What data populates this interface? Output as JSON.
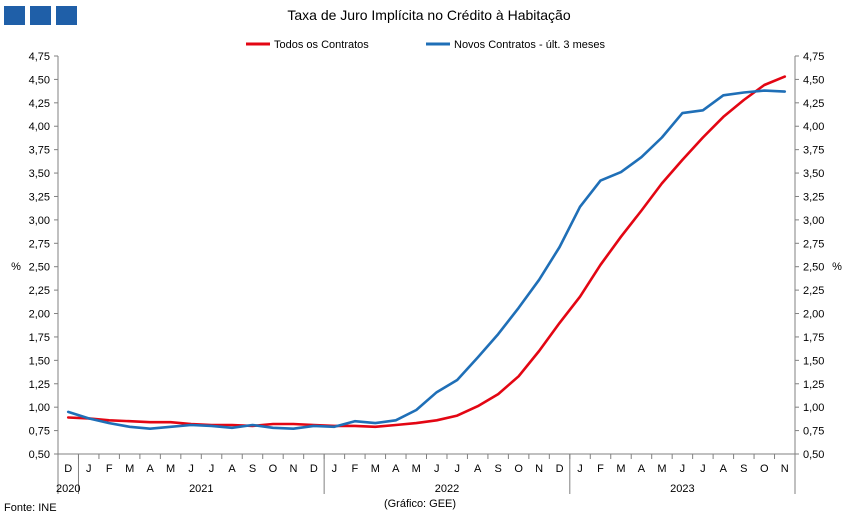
{
  "brand": {
    "color": "#1f5fa8"
  },
  "footer": {
    "source": "Fonte: INE",
    "credit": "(Gráfico: GEE)"
  },
  "chart_data": {
    "type": "line",
    "title": "Taxa de Juro Implícita  no Crédito à Habitação",
    "ylabel": "%",
    "ylabel_right": "%",
    "ylim": [
      0.5,
      4.75
    ],
    "yticks": [
      "0,50",
      "0,75",
      "1,00",
      "1,25",
      "1,50",
      "1,75",
      "2,00",
      "2,25",
      "2,50",
      "2,75",
      "3,00",
      "3,25",
      "3,50",
      "3,75",
      "4,00",
      "4,25",
      "4,50",
      "4,75"
    ],
    "grid": false,
    "legend_position": "top",
    "categories": [
      "D",
      "J",
      "F",
      "M",
      "A",
      "M",
      "J",
      "J",
      "A",
      "S",
      "O",
      "N",
      "D",
      "J",
      "F",
      "M",
      "A",
      "M",
      "J",
      "J",
      "A",
      "S",
      "O",
      "N",
      "D",
      "J",
      "F",
      "M",
      "A",
      "M",
      "J",
      "J",
      "A",
      "S",
      "O",
      "N"
    ],
    "year_labels": [
      "2020",
      "2021",
      "2022",
      "2023"
    ],
    "series": [
      {
        "name": "Todos os Contratos",
        "color": "#e30613",
        "values": [
          0.89,
          0.88,
          0.86,
          0.85,
          0.84,
          0.84,
          0.82,
          0.81,
          0.81,
          0.8,
          0.82,
          0.82,
          0.81,
          0.8,
          0.8,
          0.79,
          0.81,
          0.83,
          0.86,
          0.91,
          1.01,
          1.14,
          1.33,
          1.6,
          1.9,
          2.18,
          2.52,
          2.82,
          3.1,
          3.39,
          3.64,
          3.88,
          4.1,
          4.28,
          4.44,
          4.53
        ]
      },
      {
        "name": "Novos Contratos - últ. 3 meses",
        "color": "#1f6fb7",
        "values": [
          0.95,
          0.88,
          0.83,
          0.79,
          0.77,
          0.79,
          0.81,
          0.8,
          0.78,
          0.81,
          0.78,
          0.77,
          0.8,
          0.79,
          0.85,
          0.83,
          0.86,
          0.97,
          1.16,
          1.29,
          1.53,
          1.78,
          2.06,
          2.36,
          2.71,
          3.14,
          3.42,
          3.51,
          3.67,
          3.88,
          4.14,
          4.17,
          4.33,
          4.36,
          4.38,
          4.37
        ]
      }
    ]
  }
}
